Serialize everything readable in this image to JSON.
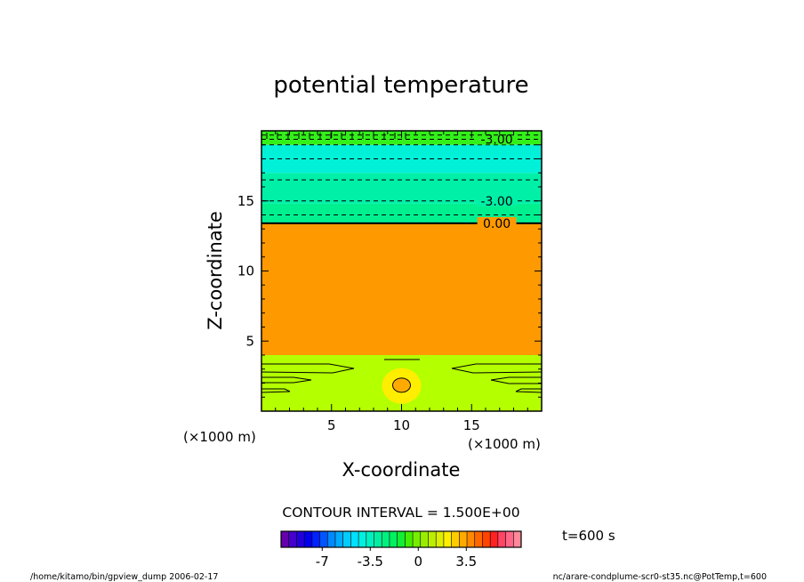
{
  "chart_data": {
    "type": "heatmap",
    "title": "potential temperature",
    "xlabel": "X-coordinate",
    "ylabel": "Z-coordinate",
    "x_unit": "(×1000 m)",
    "z_unit": "(×1000 m)",
    "xlim": [
      0,
      20
    ],
    "zlim": [
      0,
      20
    ],
    "x_ticks": [
      5,
      10,
      15
    ],
    "z_ticks": [
      5,
      10,
      15
    ],
    "bands": [
      {
        "z0": 0,
        "z1": 4,
        "color": "#b4ff00"
      },
      {
        "z0": 4,
        "z1": 13.4,
        "color": "#ff9900"
      },
      {
        "z0": 13.4,
        "z1": 14.8,
        "color": "#00f090"
      },
      {
        "z0": 14.8,
        "z1": 17,
        "color": "#00f0a8"
      },
      {
        "z0": 17,
        "z1": 19,
        "color": "#00f0d8"
      },
      {
        "z0": 19,
        "z1": 20,
        "color": "#33f01a"
      }
    ],
    "contours": [
      {
        "z": 13.4,
        "value": "0.00",
        "style": "solid-bold"
      },
      {
        "z": 14.0,
        "value": "",
        "style": "dashed"
      },
      {
        "z": 15.0,
        "value": "-3.00",
        "style": "dashed"
      },
      {
        "z": 16.5,
        "value": "",
        "style": "dashed"
      },
      {
        "z": 18.0,
        "value": "",
        "style": "dashed"
      },
      {
        "z": 19.0,
        "value": "",
        "style": "dashed"
      },
      {
        "z": 19.4,
        "value": "-3.00",
        "style": "dashed"
      },
      {
        "z": 19.7,
        "value": "",
        "style": "dashed"
      }
    ],
    "contour_interval": "CONTOUR INTERVAL = 1.500E+00",
    "colorbar": {
      "ticks": [
        "-7",
        "-3.5",
        "0",
        "3.5"
      ],
      "tick_values": [
        -7,
        -3.5,
        0,
        3.5
      ],
      "vmin": -10,
      "vmax": 7.5,
      "colors": [
        "#6600aa",
        "#4400cc",
        "#2200dd",
        "#0000ee",
        "#0022ff",
        "#0055ff",
        "#0088ff",
        "#00aaff",
        "#00ccff",
        "#00e0ff",
        "#00f0e0",
        "#00f0c0",
        "#00f0a0",
        "#00f080",
        "#00f060",
        "#11ee33",
        "#44ee00",
        "#77ee00",
        "#99ee00",
        "#bbee00",
        "#ddee00",
        "#ffee00",
        "#ffcc00",
        "#ffaa00",
        "#ff8800",
        "#ff6600",
        "#ff4400",
        "#ff2222",
        "#ff4466",
        "#ff6688",
        "#ff8899"
      ]
    },
    "time_label": "t=600 s",
    "footer_left": "/home/kitamo/bin/gpview_dump  2006-02-17",
    "footer_right": "nc/arare-condplume-scr0-st35.nc@PotTemp,t=600"
  }
}
